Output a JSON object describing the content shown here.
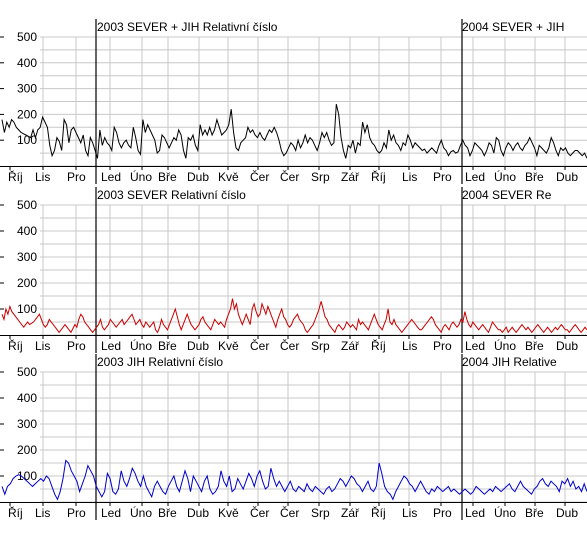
{
  "chart_data": [
    {
      "type": "line",
      "title_left": "2003     SEVER + JIH    Relativní číslo",
      "title_right": "2004     SEVER + JIH",
      "y_ticks": [
        "500",
        "400",
        "300",
        "200",
        "100"
      ],
      "ylim": [
        0,
        500
      ],
      "x_month_labels": [
        "Říj",
        "Lis",
        "Pro",
        "Led",
        "Úno",
        "Bře",
        "Dub",
        "Kvě",
        "Čer",
        "Čer",
        "Srp",
        "Zář",
        "Říj",
        "Lis",
        "Pro",
        "Led",
        "Úno",
        "Bře",
        "Dub"
      ],
      "year_markers": [
        "2003",
        "2004"
      ],
      "grid": true,
      "series": [
        {
          "color": "#000000",
          "values": [
            180,
            130,
            170,
            150,
            180,
            170,
            150,
            140,
            130,
            125,
            120,
            115,
            110,
            140,
            110,
            140,
            150,
            190,
            170,
            150,
            80,
            40,
            60,
            110,
            95,
            60,
            180,
            160,
            90,
            140,
            150,
            130,
            110,
            90,
            120,
            60,
            40,
            110,
            90,
            60,
            30,
            140,
            80,
            110,
            90,
            80,
            60,
            150,
            130,
            90,
            70,
            90,
            100,
            80,
            70,
            150,
            110,
            60,
            45,
            180,
            130,
            160,
            140,
            120,
            100,
            50,
            60,
            120,
            110,
            90,
            70,
            90,
            110,
            100,
            140,
            120,
            60,
            30,
            110,
            100,
            120,
            80,
            60,
            160,
            120,
            140,
            120,
            150,
            120,
            140,
            180,
            150,
            120,
            130,
            140,
            160,
            220,
            130,
            70,
            60,
            90,
            100,
            110,
            150,
            130,
            140,
            120,
            110,
            130,
            110,
            100,
            120,
            140,
            130,
            150,
            130,
            100,
            60,
            40,
            50,
            70,
            90,
            80,
            60,
            100,
            70,
            90,
            120,
            90,
            110,
            100,
            80,
            60,
            90,
            130,
            110,
            130,
            100,
            80,
            90,
            240,
            200,
            110,
            60,
            30,
            80,
            70,
            100,
            50,
            90,
            80,
            170,
            130,
            160,
            110,
            90,
            80,
            60,
            50,
            60,
            90,
            70,
            140,
            100,
            120,
            90,
            80,
            60,
            90,
            80,
            120,
            100,
            70,
            90,
            80,
            70,
            60,
            65,
            50,
            60,
            70,
            60,
            50,
            80,
            100,
            70,
            60,
            40,
            55,
            60,
            50,
            55,
            80,
            100,
            80,
            70,
            40,
            60,
            90,
            80,
            70,
            60,
            40,
            60,
            90,
            80,
            50,
            110,
            100,
            60,
            40,
            70,
            90,
            80,
            60,
            80,
            90,
            70,
            60,
            80,
            90,
            110,
            90,
            70,
            40,
            80,
            70,
            60,
            50,
            70,
            110,
            90,
            60,
            40,
            70,
            60,
            70,
            50,
            40,
            50,
            60,
            60,
            50,
            40,
            50,
            30
          ]
        }
      ]
    },
    {
      "type": "line",
      "title_left": "2003     SEVER    Relativní číslo",
      "title_right": "2004     SEVER    Re",
      "y_ticks": [
        "500",
        "400",
        "300",
        "200",
        "100"
      ],
      "ylim": [
        0,
        500
      ],
      "x_month_labels": [
        "Říj",
        "Lis",
        "Pro",
        "Led",
        "Úno",
        "Bře",
        "Dub",
        "Kvě",
        "Čer",
        "Čer",
        "Srp",
        "Zář",
        "Říj",
        "Lis",
        "Pro",
        "Led",
        "Úno",
        "Bře",
        "Dub"
      ],
      "year_markers": [
        "2003",
        "2004"
      ],
      "grid": true,
      "series": [
        {
          "color": "#cc0000",
          "values": [
            80,
            60,
            100,
            80,
            110,
            90,
            80,
            70,
            60,
            50,
            40,
            30,
            40,
            50,
            40,
            45,
            50,
            60,
            70,
            80,
            60,
            40,
            30,
            40,
            60,
            50,
            40,
            30,
            20,
            10,
            20,
            30,
            40,
            30,
            20,
            10,
            25,
            40,
            30,
            60,
            80,
            70,
            50,
            40,
            30,
            20,
            10,
            20,
            30,
            40,
            60,
            30,
            20,
            30,
            40,
            60,
            50,
            40,
            30,
            40,
            50,
            60,
            40,
            50,
            60,
            70,
            80,
            60,
            40,
            50,
            60,
            40,
            30,
            50,
            40,
            30,
            40,
            50,
            20,
            10,
            30,
            60,
            40,
            30,
            20,
            40,
            60,
            80,
            100,
            70,
            40,
            20,
            40,
            60,
            80,
            60,
            40,
            30,
            20,
            30,
            40,
            60,
            70,
            50,
            40,
            30,
            20,
            40,
            60,
            50,
            40,
            50,
            40,
            30,
            60,
            80,
            100,
            140,
            100,
            120,
            80,
            60,
            40,
            60,
            80,
            60,
            40,
            100,
            120,
            90,
            70,
            80,
            120,
            100,
            80,
            110,
            90,
            70,
            50,
            30,
            60,
            80,
            100,
            70,
            60,
            40,
            30,
            40,
            60,
            70,
            80,
            60,
            50,
            40,
            20,
            10,
            20,
            30,
            40,
            60,
            80,
            100,
            130,
            100,
            70,
            60,
            40,
            30,
            20,
            10,
            30,
            40,
            30,
            20,
            30,
            50,
            40,
            30,
            40,
            30,
            20,
            60,
            40,
            50,
            40,
            30,
            20,
            40,
            60,
            80,
            60,
            40,
            30,
            20,
            40,
            60,
            100,
            50,
            40,
            60,
            40,
            30,
            20,
            10,
            20,
            30,
            40,
            50,
            60,
            50,
            40,
            30,
            20,
            20,
            30,
            40,
            50,
            60,
            70,
            60,
            40,
            30,
            20,
            10,
            30,
            40,
            30,
            20,
            40,
            50,
            40,
            30,
            40,
            60,
            50,
            90,
            60,
            40,
            30,
            50,
            40,
            30,
            20,
            30,
            40,
            30,
            20,
            10,
            30,
            50,
            40,
            30,
            20,
            20,
            10,
            20,
            30,
            10,
            20,
            30,
            20,
            10,
            20,
            30,
            40,
            30,
            20,
            30,
            20,
            10,
            20,
            30,
            40,
            30,
            20,
            10,
            20,
            30,
            20,
            10,
            20,
            30,
            20,
            30,
            40,
            30,
            20,
            20,
            10,
            20,
            30,
            40,
            30,
            20,
            10,
            20,
            30,
            20
          ]
        }
      ]
    },
    {
      "type": "line",
      "title_left": "2003     JIH    Relativní číslo",
      "title_right": "2004     JIH    Relative",
      "y_ticks": [
        "500",
        "400",
        "300",
        "200",
        "100"
      ],
      "ylim": [
        0,
        500
      ],
      "x_month_labels": [
        "Říj",
        "Lis",
        "Pro",
        "Led",
        "Úno",
        "Bře",
        "Dub",
        "Kvě",
        "Čer",
        "Čer",
        "Srp",
        "Zář",
        "Říj",
        "Lis",
        "Pro",
        "Led",
        "Úno",
        "Bře",
        "Dub"
      ],
      "year_markers": [
        "2003",
        "2004"
      ],
      "grid": true,
      "series": [
        {
          "color": "#0000cc",
          "values": [
            60,
            30,
            60,
            70,
            90,
            100,
            105,
            100,
            90,
            80,
            70,
            60,
            70,
            80,
            90,
            80,
            100,
            90,
            60,
            30,
            10,
            40,
            90,
            160,
            150,
            120,
            100,
            80,
            40,
            70,
            100,
            140,
            120,
            100,
            60,
            40,
            20,
            40,
            110,
            90,
            40,
            30,
            50,
            120,
            80,
            60,
            90,
            130,
            110,
            80,
            60,
            100,
            60,
            40,
            20,
            60,
            80,
            60,
            40,
            30,
            60,
            80,
            100,
            60,
            40,
            80,
            120,
            90,
            40,
            100,
            80,
            60,
            40,
            80,
            100,
            50,
            30,
            40,
            60,
            120,
            80,
            60,
            100,
            40,
            50,
            90,
            70,
            50,
            80,
            110,
            90,
            60,
            100,
            120,
            80,
            50,
            60,
            130,
            90,
            60,
            80,
            60,
            40,
            60,
            80,
            50,
            40,
            60,
            50,
            40,
            70,
            50,
            40,
            60,
            50,
            40,
            30,
            50,
            60,
            40,
            50,
            70,
            90,
            80,
            60,
            80,
            100,
            90,
            70,
            60,
            40,
            60,
            80,
            50,
            40,
            60,
            150,
            110,
            60,
            40,
            30,
            10,
            40,
            60,
            80,
            100,
            90,
            70,
            60,
            40,
            60,
            80,
            60,
            40,
            30,
            50,
            40,
            60,
            50,
            40,
            50,
            60,
            40,
            50,
            40,
            30,
            40,
            50,
            40,
            30,
            40,
            60,
            50,
            40,
            30,
            40,
            50,
            40,
            60,
            50,
            40,
            50,
            60,
            70,
            50,
            40,
            60,
            80,
            60,
            50,
            40,
            30,
            50,
            60,
            80,
            90,
            70,
            60,
            80,
            70,
            60,
            40,
            80,
            70,
            90,
            60,
            80,
            50,
            60,
            40,
            70,
            40
          ]
        }
      ]
    }
  ]
}
